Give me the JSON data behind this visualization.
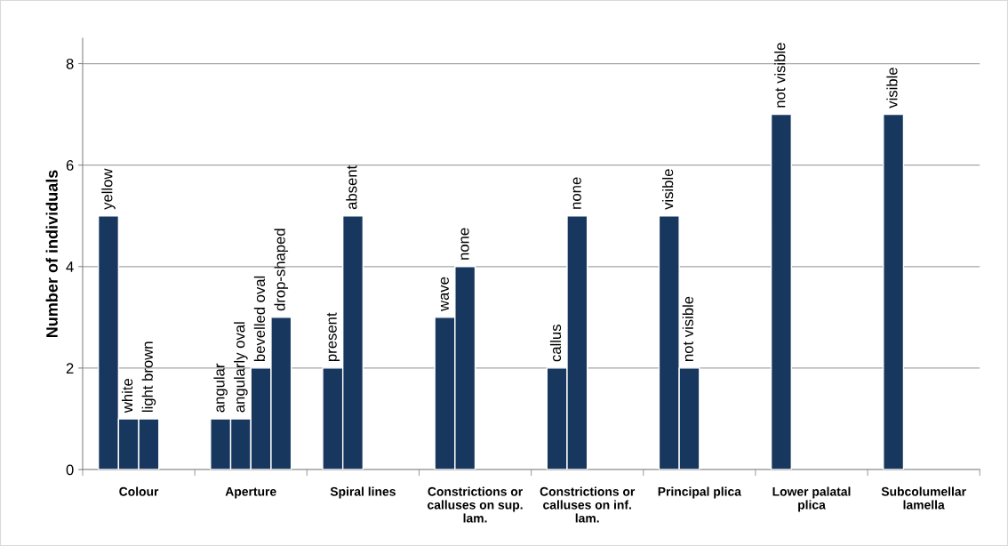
{
  "chart_data": {
    "type": "bar",
    "ylabel": "Number of individuals",
    "categories": [
      "Colour",
      "Aperture",
      "Spiral lines",
      "Constrictions or\ncalluses on sup.\nlam.",
      "Constrictions or\ncalluses on inf.\nlam.",
      "Principal plica",
      "Lower palatal\nplica",
      "Subcolumellar\nlamella"
    ],
    "series": [
      {
        "color": "#17375e",
        "values": [
          5,
          1,
          2,
          3,
          2,
          5,
          7,
          7
        ],
        "value_labels": [
          "yellow",
          "angular",
          "present",
          "wave",
          "callus",
          "visible",
          "not visible",
          "visible"
        ]
      },
      {
        "color": "#17375e",
        "values": [
          1,
          1,
          5,
          4,
          5,
          2,
          null,
          null
        ],
        "value_labels": [
          "white",
          "angularly oval",
          "absent",
          "none",
          "none",
          "not visible",
          null,
          null
        ]
      },
      {
        "color": "#17375e",
        "values": [
          1,
          2,
          null,
          null,
          null,
          null,
          null,
          null
        ],
        "value_labels": [
          "light brown",
          "bevelled oval",
          null,
          null,
          null,
          null,
          null,
          null
        ]
      },
      {
        "color": "#17375e",
        "values": [
          null,
          3,
          null,
          null,
          null,
          null,
          null,
          null
        ],
        "value_labels": [
          null,
          "drop-shaped",
          null,
          null,
          null,
          null,
          null,
          null
        ]
      }
    ],
    "ylim": [
      0,
      8.5
    ],
    "yticks": [
      0,
      2,
      4,
      6,
      8
    ],
    "grid": "y"
  }
}
